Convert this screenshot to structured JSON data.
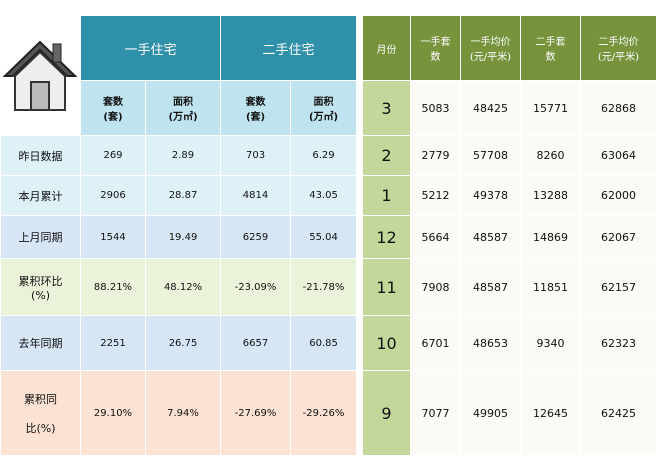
{
  "left_table": {
    "groups": [
      "一手住宅",
      "二手住宅"
    ],
    "subheaders": [
      "套数\n(套)",
      "面积\n(万㎡)",
      "套数\n(套)",
      "面积\n(万㎡)"
    ],
    "rows": [
      {
        "label": "昨日数据",
        "values": [
          "269",
          "2.89",
          "703",
          "6.29"
        ]
      },
      {
        "label": "本月累计",
        "values": [
          "2906",
          "28.87",
          "4814",
          "43.05"
        ]
      },
      {
        "label": "上月同期",
        "values": [
          "1544",
          "19.49",
          "6259",
          "55.04"
        ]
      },
      {
        "label": "累积环比\n(%)",
        "values": [
          "88.21%",
          "48.12%",
          "-23.09%",
          "-21.78%"
        ]
      },
      {
        "label": "去年同期",
        "values": [
          "2251",
          "26.75",
          "6657",
          "60.85"
        ]
      },
      {
        "label": "累积同\n\n比(%)",
        "values": [
          "29.10%",
          "7.94%",
          "-27.69%",
          "-29.26%"
        ]
      }
    ]
  },
  "right_table": {
    "headers": [
      "月份",
      "一手套\n数",
      "一手均价\n(元/平米)",
      "二手套\n数",
      "二手均价\n(元/平米)"
    ],
    "rows": [
      [
        "3",
        "5083",
        "48425",
        "15771",
        "62868"
      ],
      [
        "2",
        "2779",
        "57708",
        "8260",
        "63064"
      ],
      [
        "1",
        "5212",
        "49378",
        "13288",
        "62000"
      ],
      [
        "12",
        "5664",
        "48587",
        "14869",
        "62067"
      ],
      [
        "11",
        "7908",
        "48587",
        "11851",
        "62157"
      ],
      [
        "10",
        "6701",
        "48653",
        "9340",
        "62323"
      ],
      [
        "9",
        "7077",
        "49905",
        "12645",
        "62425"
      ]
    ]
  }
}
